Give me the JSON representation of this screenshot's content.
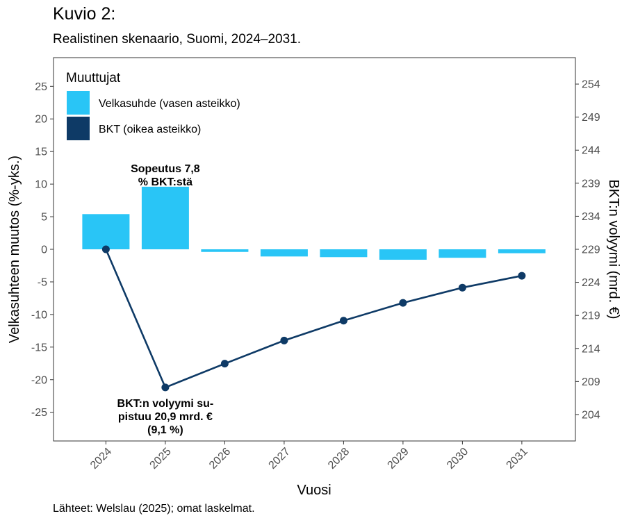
{
  "figure": {
    "title": "Kuvio 2:",
    "subtitle": "Realistinen skenaario, Suomi, 2024–2031.",
    "source": "Lähteet: Welslau (2025); omat laskelmat."
  },
  "chart_data": {
    "type": "bar+line",
    "categories": [
      "2024",
      "2025",
      "2026",
      "2027",
      "2028",
      "2029",
      "2030",
      "2031"
    ],
    "series": [
      {
        "name": "Velkasuhde (vasen asteikko)",
        "type": "bar",
        "axis": "left",
        "color": "#29C5F6",
        "values": [
          5.4,
          9.6,
          -0.4,
          -1.1,
          -1.2,
          -1.6,
          -1.3,
          -0.6
        ]
      },
      {
        "name": "BKT (oikea asteikko)",
        "type": "line",
        "axis": "right",
        "color": "#0E3A66",
        "values": [
          229.0,
          208.1,
          211.7,
          215.2,
          218.2,
          220.9,
          223.2,
          225.0
        ]
      }
    ],
    "xlabel": "Vuosi",
    "ylabel_left": "Velkasuhteen muutos (%-yks.)",
    "ylabel_right": "BKT:n volyymi (mrd. €)",
    "ylim_left": [
      -29.4,
      29.4
    ],
    "ylim_right": [
      200,
      258
    ],
    "yticks_left": [
      25,
      20,
      15,
      10,
      5,
      0,
      -5,
      -10,
      -15,
      -20,
      -25
    ],
    "ytick_labels_left": [
      "25",
      "20",
      "15",
      "10",
      "5",
      "0",
      "-5",
      "-10",
      "-15",
      "-20",
      "-25"
    ],
    "yticks_right": [
      254,
      249,
      244,
      239,
      234,
      229,
      224,
      219,
      214,
      209,
      204
    ],
    "ytick_labels_right": [
      "254",
      "249",
      "244",
      "239",
      "234",
      "229",
      "224",
      "219",
      "214",
      "209",
      "204"
    ],
    "legend": {
      "title": "Muuttujat",
      "placement": "top-left",
      "items": [
        "Velkasuhde (vasen asteikko)",
        "BKT (oikea asteikko)"
      ]
    },
    "grid": false,
    "annotations": [
      {
        "lines": [
          "Sopeutus 7,8",
          "% BKT:stä"
        ],
        "category": "2025",
        "y": 11.8,
        "axis": "left"
      },
      {
        "lines": [
          "BKT:n volyymi su-",
          "pistuu 20,9 mrd. €",
          "(9,1 %)"
        ],
        "category": "2025",
        "y": -24.2,
        "axis": "left"
      }
    ]
  }
}
